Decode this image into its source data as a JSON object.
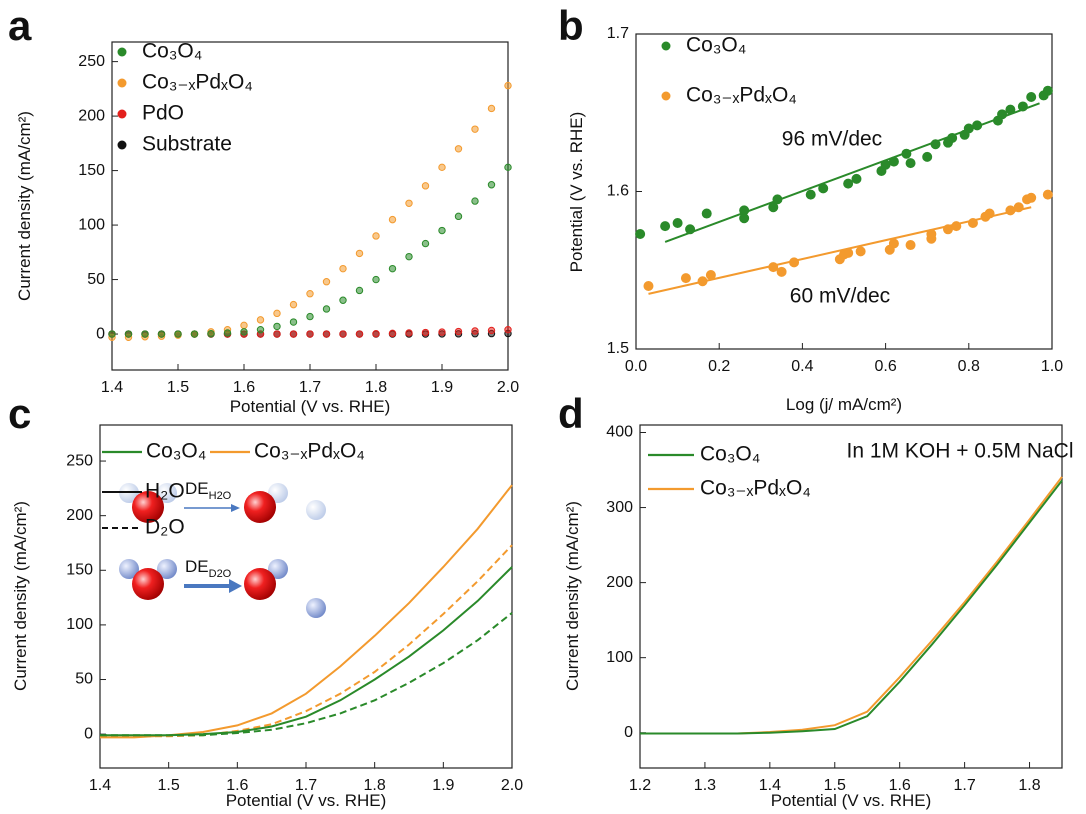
{
  "chart_data": [
    {
      "type": "scatter",
      "panel_label": "a",
      "xlabel": "Potential (V vs. RHE)",
      "ylabel": "Current density (mA/cm²)",
      "xlim": [
        1.4,
        2.0
      ],
      "xticks": [
        1.4,
        1.5,
        1.6,
        1.7,
        1.8,
        1.9,
        {
          "value": 2.0,
          "label": "2.0"
        }
      ],
      "ylim": [
        -33,
        268
      ],
      "yticks": [
        0,
        50,
        100,
        150,
        200,
        250
      ],
      "x": [
        1.4,
        1.425,
        1.45,
        1.475,
        1.5,
        1.525,
        1.55,
        1.575,
        1.6,
        1.625,
        1.65,
        1.675,
        1.7,
        1.725,
        1.75,
        1.775,
        1.8,
        1.825,
        1.85,
        1.875,
        1.9,
        1.925,
        1.95,
        1.975,
        2.0
      ],
      "series": [
        {
          "name": "Co₃O₄",
          "color": "#2a8a2a",
          "values": [
            0,
            0,
            0,
            0,
            0,
            0,
            0.3,
            1,
            2,
            4,
            7,
            11,
            16,
            23,
            31,
            40,
            50,
            60,
            71,
            83,
            95,
            108,
            122,
            137,
            153
          ]
        },
        {
          "name": "Co₃₋ₓPdₓO₄",
          "color": "#f39a2e",
          "values": [
            -3,
            -3,
            -2.5,
            -2,
            -1,
            0,
            2,
            4,
            8,
            13,
            19,
            27,
            37,
            48,
            60,
            74,
            90,
            105,
            120,
            136,
            153,
            170,
            188,
            207,
            228
          ]
        },
        {
          "name": "PdO",
          "color": "#e3201c",
          "values": [
            0,
            0,
            0,
            0,
            0,
            0,
            0,
            0,
            0,
            0,
            0,
            0,
            0,
            0,
            0,
            0,
            0.3,
            0.6,
            1,
            1.4,
            1.8,
            2.3,
            2.8,
            3.3,
            4
          ]
        },
        {
          "name": "Substrate",
          "color": "#111111",
          "values": [
            0,
            0,
            0,
            0,
            0,
            0,
            0,
            0,
            0,
            0,
            0,
            0,
            0,
            0,
            0,
            0,
            0,
            0,
            0,
            0,
            0.1,
            0.2,
            0.3,
            0.4,
            0.5
          ]
        }
      ]
    },
    {
      "type": "scatter",
      "panel_label": "b",
      "xlabel": "Log (j/ mA/cm²)",
      "ylabel": "Potential (V vs. RHE)",
      "xlim": [
        0,
        1
      ],
      "xticks": [
        {
          "value": 0,
          "label": "0.0"
        },
        0.2,
        0.4,
        0.6,
        0.8,
        {
          "value": 1,
          "label": "1.0"
        }
      ],
      "ylim": [
        1.5,
        1.7
      ],
      "yticks": [
        1.5,
        1.6,
        1.7
      ],
      "series": [
        {
          "name": "Co₃O₄",
          "color": "#2a8a2a",
          "x": [
            0.01,
            0.07,
            0.1,
            0.13,
            0.17,
            0.26,
            0.26,
            0.33,
            0.34,
            0.42,
            0.45,
            0.51,
            0.53,
            0.59,
            0.6,
            0.62,
            0.65,
            0.66,
            0.7,
            0.72,
            0.75,
            0.76,
            0.79,
            0.8,
            0.82,
            0.87,
            0.88,
            0.9,
            0.93,
            0.95,
            0.98,
            0.99
          ],
          "values": [
            1.573,
            1.578,
            1.58,
            1.576,
            1.586,
            1.583,
            1.588,
            1.59,
            1.595,
            1.598,
            1.602,
            1.605,
            1.608,
            1.613,
            1.617,
            1.619,
            1.624,
            1.618,
            1.622,
            1.63,
            1.631,
            1.634,
            1.636,
            1.64,
            1.642,
            1.645,
            1.649,
            1.652,
            1.654,
            1.66,
            1.661,
            1.664
          ]
        },
        {
          "name": "Co₃₋ₓPdₓO₄",
          "color": "#f39a2e",
          "x": [
            0.03,
            0.12,
            0.16,
            0.18,
            0.33,
            0.35,
            0.38,
            0.49,
            0.5,
            0.51,
            0.54,
            0.61,
            0.62,
            0.66,
            0.71,
            0.71,
            0.75,
            0.77,
            0.81,
            0.84,
            0.85,
            0.9,
            0.92,
            0.94,
            0.95,
            0.99
          ],
          "values": [
            1.54,
            1.545,
            1.543,
            1.547,
            1.552,
            1.549,
            1.555,
            1.557,
            1.56,
            1.561,
            1.562,
            1.563,
            1.567,
            1.566,
            1.57,
            1.573,
            1.576,
            1.578,
            1.58,
            1.584,
            1.586,
            1.588,
            1.59,
            1.595,
            1.596,
            1.598
          ]
        }
      ],
      "fits": [
        {
          "color": "#2a8a2a",
          "x": [
            0.07,
            0.97
          ],
          "values": [
            1.568,
            1.656
          ]
        },
        {
          "color": "#f39a2e",
          "x": [
            0.03,
            0.95
          ],
          "values": [
            1.535,
            1.59
          ]
        }
      ],
      "annotations": [
        {
          "text": "96 mV/dec",
          "color": "#2a8a2a"
        },
        {
          "text": "60 mV/dec",
          "color": "#f39a2e"
        }
      ]
    },
    {
      "type": "line",
      "panel_label": "c",
      "xlabel": "Potential (V vs. RHE)",
      "ylabel": "Current density (mA/cm²)",
      "xlim": [
        1.4,
        2.0
      ],
      "xticks": [
        1.4,
        1.5,
        1.6,
        1.7,
        1.8,
        1.9,
        {
          "value": 2.0,
          "label": "2.0"
        }
      ],
      "ylim": [
        -31,
        283
      ],
      "yticks": [
        0,
        50,
        100,
        150,
        200,
        250
      ],
      "x": [
        1.4,
        1.45,
        1.5,
        1.55,
        1.6,
        1.65,
        1.7,
        1.75,
        1.8,
        1.85,
        1.9,
        1.95,
        2.0
      ],
      "series": [
        {
          "color": "#2a8a2a",
          "dash": false,
          "values": [
            -1,
            -1,
            -1,
            0,
            2,
            7,
            16,
            31,
            50,
            71,
            95,
            122,
            153
          ]
        },
        {
          "color": "#2a8a2a",
          "dash": true,
          "values": [
            -1,
            -1,
            -1,
            -1,
            1,
            4,
            10,
            19,
            31,
            47,
            65,
            86,
            111
          ]
        },
        {
          "color": "#f39a2e",
          "dash": false,
          "values": [
            -3,
            -3,
            -1,
            2,
            8,
            19,
            37,
            62,
            90,
            120,
            153,
            188,
            228
          ]
        },
        {
          "color": "#f39a2e",
          "dash": true,
          "values": [
            -2,
            -2,
            -2,
            -1,
            3,
            9,
            21,
            37,
            57,
            82,
            110,
            140,
            173
          ]
        }
      ],
      "legend": [
        {
          "label": "Co₃O₄",
          "color": "#2a8a2a"
        },
        {
          "label": "Co₃₋ₓPdₓO₄",
          "color": "#f39a2e"
        }
      ],
      "line_styles": [
        {
          "label": "H₂O",
          "dash": false
        },
        {
          "label": "D₂O",
          "dash": true
        }
      ],
      "inset": {
        "labels": [
          [
            "DE",
            "H2O"
          ],
          [
            "DE",
            "D2O"
          ]
        ]
      }
    },
    {
      "type": "line",
      "panel_label": "d",
      "xlabel": "Potential (V vs. RHE)",
      "ylabel": "Current density (mA/cm²)",
      "xlim": [
        1.2,
        1.85
      ],
      "xticks": [
        1.2,
        1.3,
        1.4,
        1.5,
        1.6,
        1.7,
        1.8
      ],
      "ylim": [
        -47,
        410
      ],
      "yticks": [
        0,
        100,
        200,
        300,
        400
      ],
      "x": [
        1.2,
        1.25,
        1.3,
        1.35,
        1.4,
        1.45,
        1.5,
        1.55,
        1.6,
        1.65,
        1.7,
        1.75,
        1.8,
        1.85
      ],
      "series": [
        {
          "name": "Co₃O₄",
          "color": "#2a8a2a",
          "values": [
            -1,
            -1,
            -1,
            -1,
            0,
            2,
            5,
            22,
            68,
            118,
            170,
            224,
            280,
            336
          ]
        },
        {
          "name": "Co₃₋ₓPdₓO₄",
          "color": "#f39a2e",
          "values": [
            -1,
            -1,
            -1,
            -1,
            1,
            4,
            10,
            28,
            74,
            123,
            174,
            228,
            284,
            341
          ]
        }
      ],
      "annotations": [
        {
          "text": "In 1M KOH + 0.5M NaCl",
          "color": "#111111"
        }
      ]
    }
  ]
}
